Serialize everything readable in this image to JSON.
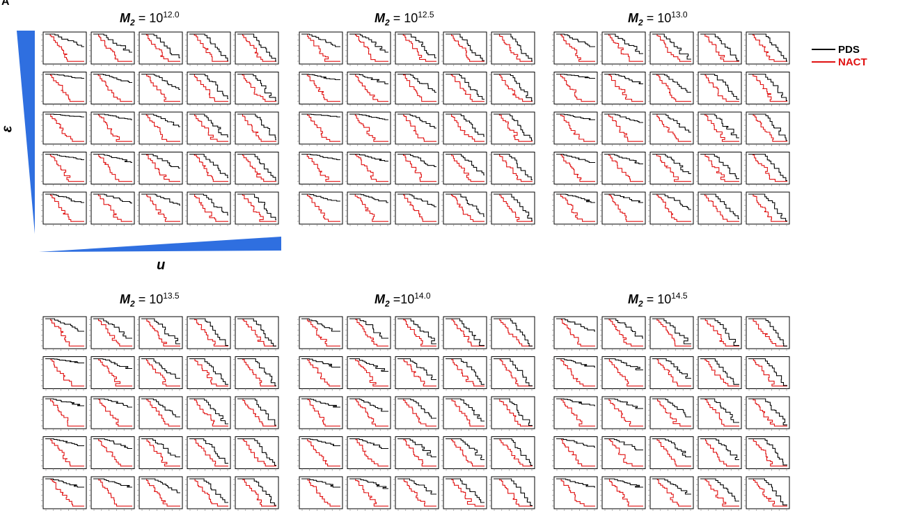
{
  "panel_label": "A",
  "axis_labels": {
    "epsilon": "ε",
    "u": "u"
  },
  "legend": [
    {
      "label": "PDS",
      "color": "#000000"
    },
    {
      "label": "NACT",
      "color": "#e01010"
    }
  ],
  "colors": {
    "triangle": "#2f6fe0",
    "pds": "#000000",
    "nact": "#e01010"
  },
  "groups": [
    {
      "m": "M",
      "sub": "2",
      "eq": " = 10",
      "sup": "12.0"
    },
    {
      "m": "M",
      "sub": "2",
      "eq": " = 10",
      "sup": "12.5"
    },
    {
      "m": "M",
      "sub": "2",
      "eq": " = 10",
      "sup": "13.0"
    },
    {
      "m": "M",
      "sub": "2",
      "eq": " = 10",
      "sup": "13.5"
    },
    {
      "m": "M",
      "sub": "2",
      "eq": " =10",
      "sup": "14.0"
    },
    {
      "m": "M",
      "sub": "2",
      "eq": " = 10",
      "sup": "14.5"
    }
  ],
  "chart_data": {
    "type": "line",
    "description_of_grid": "6 parameter groups, each a 5x5 grid of survival curves (rows: epsilon, columns: u)",
    "series_names": [
      "PDS",
      "NACT"
    ],
    "pds_end_levels": [
      [
        [
          0.55,
          0.35,
          0.15,
          0.05,
          0.03
        ],
        [
          0.85,
          0.7,
          0.45,
          0.12,
          0.05
        ],
        [
          0.9,
          0.8,
          0.55,
          0.18,
          0.08
        ],
        [
          0.8,
          0.7,
          0.5,
          0.15,
          0.06
        ],
        [
          0.7,
          0.68,
          0.6,
          0.25,
          0.08
        ]
      ],
      [
        [
          0.55,
          0.35,
          0.15,
          0.05,
          0.03
        ],
        [
          0.8,
          0.65,
          0.35,
          0.1,
          0.04
        ],
        [
          0.9,
          0.8,
          0.5,
          0.2,
          0.06
        ],
        [
          0.8,
          0.75,
          0.55,
          0.25,
          0.08
        ],
        [
          0.75,
          0.7,
          0.55,
          0.2,
          0.05
        ]
      ],
      [
        [
          0.55,
          0.3,
          0.1,
          0.05,
          0.03
        ],
        [
          0.85,
          0.65,
          0.35,
          0.1,
          0.05
        ],
        [
          0.8,
          0.7,
          0.35,
          0.15,
          0.06
        ],
        [
          0.7,
          0.65,
          0.3,
          0.12,
          0.05
        ],
        [
          0.7,
          0.7,
          0.45,
          0.12,
          0.04
        ]
      ],
      [
        [
          0.55,
          0.3,
          0.1,
          0.04,
          0.02
        ],
        [
          0.85,
          0.65,
          0.3,
          0.08,
          0.03
        ],
        [
          0.75,
          0.7,
          0.35,
          0.1,
          0.05
        ],
        [
          0.75,
          0.65,
          0.35,
          0.12,
          0.05
        ],
        [
          0.7,
          0.7,
          0.5,
          0.15,
          0.05
        ]
      ],
      [
        [
          0.55,
          0.3,
          0.1,
          0.04,
          0.02
        ],
        [
          0.7,
          0.55,
          0.25,
          0.08,
          0.03
        ],
        [
          0.7,
          0.55,
          0.3,
          0.2,
          0.04
        ],
        [
          0.75,
          0.65,
          0.35,
          0.25,
          0.05
        ],
        [
          0.7,
          0.65,
          0.45,
          0.15,
          0.04
        ]
      ],
      [
        [
          0.55,
          0.3,
          0.1,
          0.04,
          0.02
        ],
        [
          0.7,
          0.6,
          0.3,
          0.08,
          0.04
        ],
        [
          0.75,
          0.65,
          0.35,
          0.15,
          0.06
        ],
        [
          0.7,
          0.6,
          0.35,
          0.25,
          0.06
        ],
        [
          0.7,
          0.7,
          0.45,
          0.2,
          0.06
        ]
      ]
    ]
  }
}
